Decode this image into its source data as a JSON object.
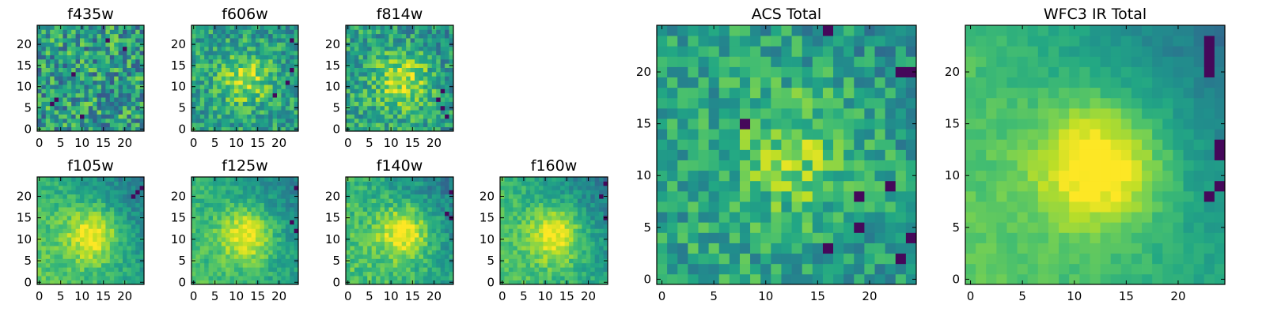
{
  "figure": {
    "colormap": "viridis",
    "image_size": 25
  },
  "chart_data": [
    {
      "type": "heatmap",
      "title": "f435w",
      "rows": 25,
      "cols": 25,
      "xlim": [
        0,
        24
      ],
      "ylim": [
        0,
        24
      ],
      "xticks": [
        0,
        5,
        10,
        15,
        20
      ],
      "yticks": [
        0,
        5,
        10,
        15,
        20
      ],
      "source": {
        "center": null,
        "peak": 0.7,
        "noise": 0.28,
        "gradient": 0.0,
        "dark_pixels": [
          [
            3,
            6
          ],
          [
            4,
            7
          ],
          [
            8,
            13
          ],
          [
            20,
            19
          ],
          [
            10,
            3
          ],
          [
            16,
            21
          ]
        ]
      }
    },
    {
      "type": "heatmap",
      "title": "f606w",
      "rows": 25,
      "cols": 25,
      "xlim": [
        0,
        24
      ],
      "ylim": [
        0,
        24
      ],
      "xticks": [
        0,
        5,
        10,
        15,
        20
      ],
      "yticks": [
        0,
        5,
        10,
        15,
        20
      ],
      "source": {
        "center": [
          12.5,
          12
        ],
        "peak": 0.8,
        "noise": 0.2,
        "gradient": 0.1,
        "dark_pixels": [
          [
            23,
            14
          ],
          [
            22,
            11
          ],
          [
            23,
            21
          ],
          [
            19,
            8
          ]
        ]
      }
    },
    {
      "type": "heatmap",
      "title": "f814w",
      "rows": 25,
      "cols": 25,
      "xlim": [
        0,
        24
      ],
      "ylim": [
        0,
        24
      ],
      "xticks": [
        0,
        5,
        10,
        15,
        20
      ],
      "yticks": [
        0,
        5,
        10,
        15,
        20
      ],
      "source": {
        "center": [
          13,
          11.5
        ],
        "peak": 0.85,
        "noise": 0.2,
        "gradient": 0.15,
        "dark_pixels": [
          [
            22,
            5
          ],
          [
            23,
            3
          ],
          [
            21,
            7
          ],
          [
            22,
            9
          ]
        ]
      }
    },
    {
      "type": "heatmap",
      "title": "f105w",
      "rows": 25,
      "cols": 25,
      "xlim": [
        0,
        24
      ],
      "ylim": [
        0,
        24
      ],
      "xticks": [
        0,
        5,
        10,
        15,
        20
      ],
      "yticks": [
        0,
        5,
        10,
        15,
        20
      ],
      "source": {
        "center": [
          12.5,
          11
        ],
        "peak": 0.9,
        "noise": 0.1,
        "gradient": 0.55,
        "dark_pixels": [
          [
            23,
            21
          ],
          [
            24,
            22
          ],
          [
            22,
            20
          ]
        ]
      }
    },
    {
      "type": "heatmap",
      "title": "f125w",
      "rows": 25,
      "cols": 25,
      "xlim": [
        0,
        24
      ],
      "ylim": [
        0,
        24
      ],
      "xticks": [
        0,
        5,
        10,
        15,
        20
      ],
      "yticks": [
        0,
        5,
        10,
        15,
        20
      ],
      "source": {
        "center": [
          12.5,
          11
        ],
        "peak": 0.9,
        "noise": 0.1,
        "gradient": 0.45,
        "dark_pixels": [
          [
            24,
            22
          ],
          [
            24,
            12
          ],
          [
            23,
            14
          ]
        ]
      }
    },
    {
      "type": "heatmap",
      "title": "f140w",
      "rows": 25,
      "cols": 25,
      "xlim": [
        0,
        24
      ],
      "ylim": [
        0,
        24
      ],
      "xticks": [
        0,
        5,
        10,
        15,
        20
      ],
      "yticks": [
        0,
        5,
        10,
        15,
        20
      ],
      "source": {
        "center": [
          13,
          11.5
        ],
        "peak": 0.9,
        "noise": 0.12,
        "gradient": 0.5,
        "dark_pixels": [
          [
            24,
            21
          ],
          [
            24,
            15
          ],
          [
            23,
            16
          ]
        ]
      }
    },
    {
      "type": "heatmap",
      "title": "f160w",
      "rows": 25,
      "cols": 25,
      "xlim": [
        0,
        24
      ],
      "ylim": [
        0,
        24
      ],
      "xticks": [
        0,
        5,
        10,
        15,
        20
      ],
      "yticks": [
        0,
        5,
        10,
        15,
        20
      ],
      "source": {
        "center": [
          12.5,
          11
        ],
        "peak": 0.9,
        "noise": 0.1,
        "gradient": 0.55,
        "dark_pixels": [
          [
            24,
            23
          ],
          [
            24,
            15
          ],
          [
            23,
            20
          ]
        ]
      }
    },
    {
      "type": "heatmap",
      "title": "ACS Total",
      "rows": 25,
      "cols": 25,
      "xlim": [
        0,
        24
      ],
      "ylim": [
        0,
        24
      ],
      "xticks": [
        0,
        5,
        10,
        15,
        20
      ],
      "yticks": [
        0,
        5,
        10,
        15,
        20
      ],
      "source": {
        "center": [
          13,
          12
        ],
        "peak": 0.75,
        "noise": 0.18,
        "gradient": 0.12,
        "dark_pixels": [
          [
            16,
            24
          ],
          [
            23,
            20
          ],
          [
            24,
            20
          ],
          [
            8,
            15
          ],
          [
            19,
            8
          ],
          [
            22,
            9
          ],
          [
            19,
            5
          ],
          [
            23,
            2
          ],
          [
            24,
            4
          ],
          [
            16,
            3
          ]
        ]
      }
    },
    {
      "type": "heatmap",
      "title": "WFC3 IR Total",
      "rows": 25,
      "cols": 25,
      "xlim": [
        0,
        24
      ],
      "ylim": [
        0,
        24
      ],
      "xticks": [
        0,
        5,
        10,
        15,
        20
      ],
      "yticks": [
        0,
        5,
        10,
        15,
        20
      ],
      "source": {
        "center": [
          12.5,
          11
        ],
        "peak": 0.95,
        "noise": 0.05,
        "gradient": 0.6,
        "dark_pixels": [
          [
            23,
            23
          ],
          [
            23,
            22
          ],
          [
            23,
            21
          ],
          [
            23,
            20
          ],
          [
            24,
            13
          ],
          [
            24,
            12
          ],
          [
            24,
            9
          ],
          [
            23,
            8
          ]
        ]
      }
    }
  ]
}
